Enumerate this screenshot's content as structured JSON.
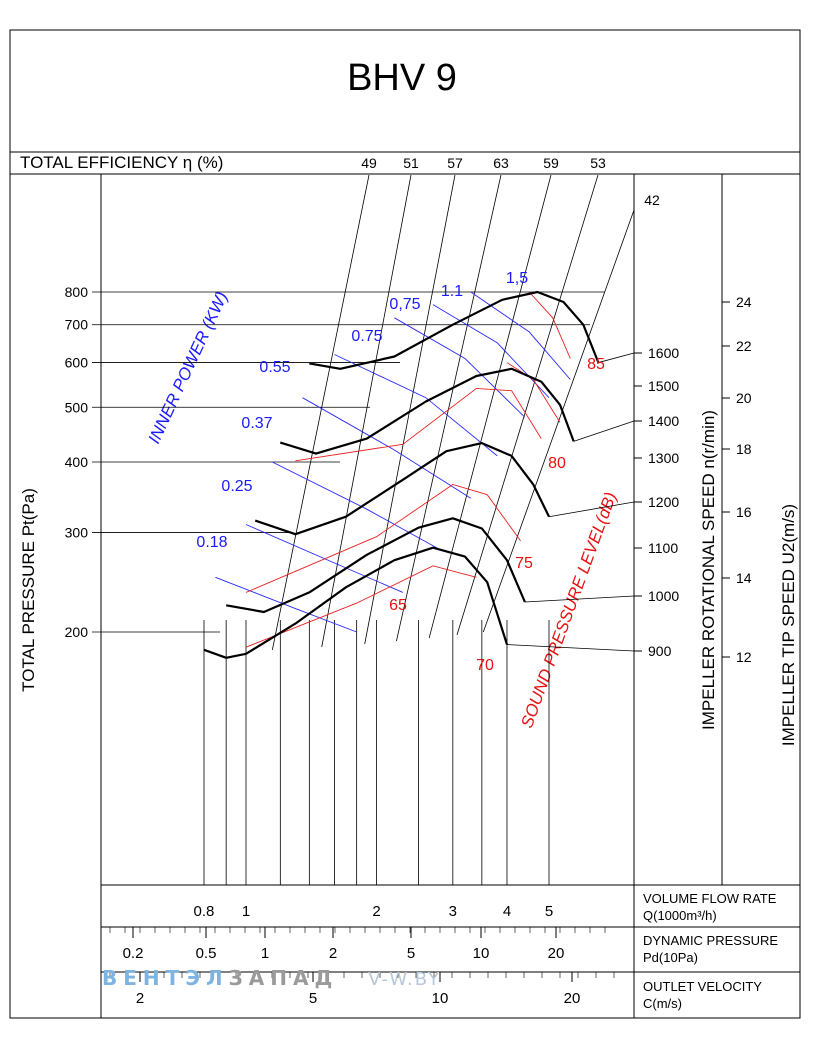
{
  "chart_data": {
    "type": "line",
    "title": "BHV 9",
    "efficiency": {
      "label": "TOTAL EFFICIENCY η (%)",
      "ticks": [
        "49",
        "51",
        "57",
        "63",
        "59",
        "53",
        "42"
      ]
    },
    "pressure_axis": {
      "label": "TOTAL PRESSURE Pt(Pa)",
      "scale": "log",
      "ticks": [
        "200",
        "300",
        "400",
        "500",
        "600",
        "700",
        "800"
      ]
    },
    "speed_axis": {
      "label": "IMPELLER ROTATIONAL SPEED n(r/min)",
      "ticks": [
        "900",
        "1000",
        "1100",
        "1200",
        "1300",
        "1400",
        "1500",
        "1600"
      ]
    },
    "tip_speed_axis": {
      "label": "IMPELLER TIP SPEED U2(m/s)",
      "ticks": [
        "12",
        "14",
        "16",
        "18",
        "20",
        "22",
        "24"
      ]
    },
    "power": {
      "label": "INNER POWER (KW)",
      "labels": [
        "0.18",
        "0.25",
        "0.37",
        "0.55",
        "0.75",
        "0,75",
        "1.1",
        "1,5"
      ]
    },
    "sound": {
      "label": "SOUND PRESSURE LEVEL(dB)",
      "labels": [
        "65",
        "70",
        "75",
        "80",
        "85"
      ]
    },
    "flow_scale": {
      "label1": "VOLUME FLOW RATE",
      "label2": "Q(1000m³/h)",
      "ticks": [
        "0.8",
        "1",
        "2",
        "3",
        "4",
        "5"
      ]
    },
    "dyn_scale": {
      "label1": "DYNAMIC PRESSURE",
      "label2": "Pd(10Pa)",
      "ticks": [
        "0.2",
        "0.5",
        "1",
        "2",
        "5",
        "10",
        "20"
      ]
    },
    "vel_scale": {
      "label1": "OUTLET VELOCITY",
      "label2": "C(m/s)",
      "ticks": [
        "2",
        "5",
        "10",
        "20"
      ]
    },
    "speed_curves": [
      {
        "rpm": 900,
        "points": [
          [
            0.8,
            186
          ],
          [
            0.9,
            180
          ],
          [
            1,
            183
          ],
          [
            1.3,
            207
          ],
          [
            1.7,
            240
          ],
          [
            2.2,
            268
          ],
          [
            2.7,
            282
          ],
          [
            3.2,
            272
          ],
          [
            3.6,
            245
          ],
          [
            4.0,
            190
          ]
        ]
      },
      {
        "rpm": 1000,
        "points": [
          [
            0.9,
            223
          ],
          [
            1.1,
            217
          ],
          [
            1.4,
            235
          ],
          [
            1.9,
            274
          ],
          [
            2.5,
            306
          ],
          [
            3.0,
            318
          ],
          [
            3.5,
            305
          ],
          [
            4.0,
            268
          ],
          [
            4.4,
            226
          ]
        ]
      },
      {
        "rpm": 1200,
        "points": [
          [
            1.05,
            315
          ],
          [
            1.3,
            298
          ],
          [
            1.7,
            320
          ],
          [
            2.3,
            372
          ],
          [
            2.9,
            418
          ],
          [
            3.5,
            432
          ],
          [
            4.1,
            410
          ],
          [
            4.6,
            365
          ],
          [
            5.0,
            320
          ]
        ]
      },
      {
        "rpm": 1400,
        "points": [
          [
            1.2,
            433
          ],
          [
            1.45,
            414
          ],
          [
            1.9,
            440
          ],
          [
            2.6,
            512
          ],
          [
            3.4,
            568
          ],
          [
            4.1,
            585
          ],
          [
            4.8,
            555
          ],
          [
            5.3,
            505
          ],
          [
            5.7,
            435
          ]
        ]
      },
      {
        "rpm": 1600,
        "points": [
          [
            1.4,
            598
          ],
          [
            1.65,
            585
          ],
          [
            2.2,
            615
          ],
          [
            3.0,
            700
          ],
          [
            3.9,
            775
          ],
          [
            4.7,
            800
          ],
          [
            5.4,
            768
          ],
          [
            6.0,
            700
          ],
          [
            6.5,
            600
          ]
        ]
      }
    ],
    "efficiency_q": [
      1.5,
      1.95,
      2.45,
      2.9,
      3.45,
      4.0,
      4.6
    ],
    "power_curves": [
      {
        "points": [
          [
            0.85,
            250
          ],
          [
            1.3,
            220
          ],
          [
            1.8,
            200
          ]
        ]
      },
      {
        "points": [
          [
            1.0,
            310
          ],
          [
            1.6,
            265
          ],
          [
            2.3,
            235
          ]
        ]
      },
      {
        "points": [
          [
            1.15,
            400
          ],
          [
            1.9,
            330
          ],
          [
            2.8,
            280
          ]
        ]
      },
      {
        "points": [
          [
            1.35,
            520
          ],
          [
            2.2,
            420
          ],
          [
            3.3,
            345
          ]
        ]
      },
      {
        "points": [
          [
            1.6,
            620
          ],
          [
            2.6,
            520
          ],
          [
            3.8,
            410
          ]
        ]
      },
      {
        "points": [
          [
            2.2,
            720
          ],
          [
            3.2,
            610
          ],
          [
            4.4,
            480
          ]
        ]
      },
      {
        "points": [
          [
            2.7,
            760
          ],
          [
            3.8,
            650
          ],
          [
            5.0,
            520
          ]
        ]
      },
      {
        "points": [
          [
            3.3,
            800
          ],
          [
            4.5,
            680
          ],
          [
            5.6,
            560
          ]
        ]
      }
    ],
    "sound_curves": [
      {
        "points": [
          [
            1.0,
            188
          ],
          [
            1.8,
            225
          ],
          [
            2.7,
            262
          ],
          [
            3.4,
            250
          ]
        ]
      },
      {
        "points": [
          [
            1.0,
            235
          ],
          [
            2.0,
            295
          ],
          [
            3.0,
            365
          ],
          [
            3.6,
            350
          ],
          [
            4.3,
            290
          ]
        ]
      },
      {
        "points": [
          [
            1.3,
            402
          ],
          [
            2.3,
            430
          ],
          [
            3.4,
            540
          ],
          [
            4.1,
            535
          ],
          [
            4.8,
            440
          ]
        ]
      },
      {
        "points": [
          [
            4.0,
            600
          ],
          [
            4.6,
            560
          ],
          [
            5.3,
            470
          ]
        ]
      },
      {
        "points": [
          [
            4.5,
            800
          ],
          [
            5.1,
            720
          ],
          [
            5.6,
            610
          ]
        ]
      }
    ]
  }
}
